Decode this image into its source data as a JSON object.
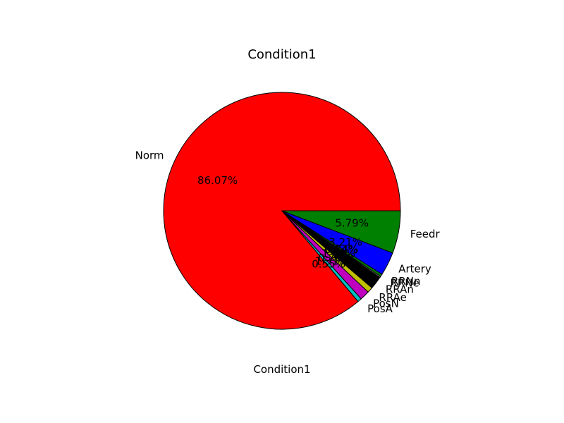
{
  "chart_data": {
    "type": "pie",
    "title": "Condition1",
    "xlabel": "Condition1",
    "ylabel": "",
    "start_angle_deg": 0,
    "direction": "counterclockwise",
    "edge_color": "#000000",
    "slices": [
      {
        "label": "Norm",
        "pct_label": "86.07%",
        "value": 86.07,
        "color": "#ff0000"
      },
      {
        "label": "PosA",
        "pct_label": "0.55%",
        "value": 0.55,
        "color": "#00bfbf"
      },
      {
        "label": "PosN",
        "pct_label": "1.31%",
        "value": 1.31,
        "color": "#bf00bf"
      },
      {
        "label": "RRAe",
        "pct_label": "0.76%",
        "value": 0.76,
        "color": "#bfbf00"
      },
      {
        "label": "RRAn",
        "pct_label": "1.79%",
        "value": 1.79,
        "color": "#000000"
      },
      {
        "label": "RRNe",
        "pct_label": "0.14%",
        "value": 0.14,
        "color": "#ffffff"
      },
      {
        "label": "RRNn",
        "pct_label": "0.34%",
        "value": 0.34,
        "color": "#008000"
      },
      {
        "label": "Artery",
        "pct_label": "3.21%",
        "value": 3.21,
        "color": "#0000ff"
      },
      {
        "label": "Feedr",
        "pct_label": "5.79%",
        "value": 5.79,
        "color": "#008000"
      }
    ]
  }
}
